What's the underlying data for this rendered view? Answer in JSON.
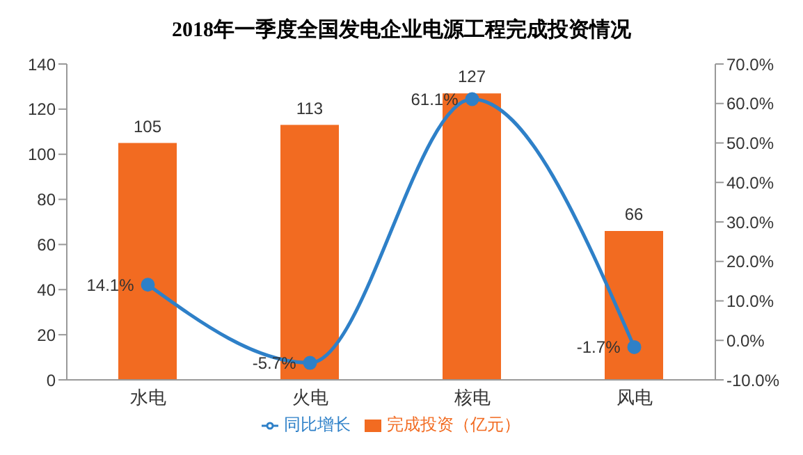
{
  "chart_data": {
    "type": "bar",
    "title": "2018年一季度全国发电企业电源工程完成投资情况",
    "categories": [
      "水电",
      "火电",
      "核电",
      "风电"
    ],
    "series": [
      {
        "name": "完成投资（亿元）",
        "color": "#f26b21",
        "values": [
          105,
          113,
          127,
          66
        ],
        "value_labels": [
          "105",
          "113",
          "127",
          "66"
        ]
      },
      {
        "name": "同比增长",
        "type": "line",
        "axis": "y2",
        "color": "#2e80c8",
        "values": [
          14.1,
          -5.7,
          61.1,
          -1.7
        ],
        "value_labels": [
          "14.1%",
          "-5.7%",
          "61.1%",
          "-1.7%"
        ]
      }
    ],
    "ylim": [
      0,
      140
    ],
    "yticks": [
      0,
      20,
      40,
      60,
      80,
      100,
      120,
      140
    ],
    "y2lim": [
      -10,
      70
    ],
    "y2ticks": [
      {
        "value": -10,
        "label": "-10.0%"
      },
      {
        "value": 0,
        "label": "0.0%"
      },
      {
        "value": 10,
        "label": "10.0%"
      },
      {
        "value": 20,
        "label": "20.0%"
      },
      {
        "value": 30,
        "label": "30.0%"
      },
      {
        "value": 40,
        "label": "40.0%"
      },
      {
        "value": 50,
        "label": "50.0%"
      },
      {
        "value": 60,
        "label": "60.0%"
      },
      {
        "value": 70,
        "label": "70.0%"
      }
    ],
    "legend": "bottom",
    "marker": "circle"
  }
}
